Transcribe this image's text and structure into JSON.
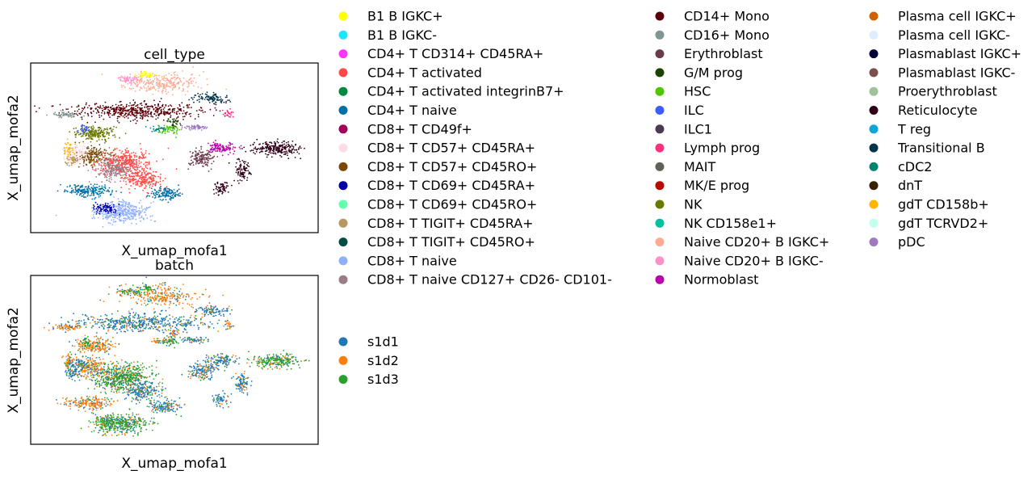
{
  "chart_data": [
    {
      "type": "scatter",
      "title": "cell_type",
      "xlabel": "X_umap_mofa1",
      "ylabel": "X_umap_mofa2",
      "legend_placement": "right",
      "grid": false,
      "legend": [
        {
          "label": "B1 B IGKC+",
          "color": "#ffff00"
        },
        {
          "label": "B1 B IGKC-",
          "color": "#1ce6ff"
        },
        {
          "label": "CD4+ T CD314+ CD45RA+",
          "color": "#ff34ff"
        },
        {
          "label": "CD4+ T activated",
          "color": "#ff4a46"
        },
        {
          "label": "CD4+ T activated integrinB7+",
          "color": "#008941"
        },
        {
          "label": "CD4+ T naive",
          "color": "#006fa6"
        },
        {
          "label": "CD8+ T CD49f+",
          "color": "#a30059"
        },
        {
          "label": "CD8+ T CD57+ CD45RA+",
          "color": "#ffdbe5"
        },
        {
          "label": "CD8+ T CD57+ CD45RO+",
          "color": "#7a4900"
        },
        {
          "label": "CD8+ T CD69+ CD45RA+",
          "color": "#0000a6"
        },
        {
          "label": "CD8+ T CD69+ CD45RO+",
          "color": "#63ffac"
        },
        {
          "label": "CD8+ T TIGIT+ CD45RA+",
          "color": "#b79762"
        },
        {
          "label": "CD8+ T TIGIT+ CD45RO+",
          "color": "#004d43"
        },
        {
          "label": "CD8+ T naive",
          "color": "#8fb0ff"
        },
        {
          "label": "CD8+ T naive CD127+ CD26- CD101-",
          "color": "#997d87"
        },
        {
          "label": "CD14+ Mono",
          "color": "#5a0007"
        },
        {
          "label": "CD16+ Mono",
          "color": "#809693"
        },
        {
          "label": "Erythroblast",
          "color": "#6a3a4c"
        },
        {
          "label": "G/M prog",
          "color": "#1b4400"
        },
        {
          "label": "HSC",
          "color": "#4fc601"
        },
        {
          "label": "ILC",
          "color": "#3b5dff"
        },
        {
          "label": "ILC1",
          "color": "#4a3b53"
        },
        {
          "label": "Lymph prog",
          "color": "#ff2f80"
        },
        {
          "label": "MAIT",
          "color": "#61615a"
        },
        {
          "label": "MK/E prog",
          "color": "#ba0900"
        },
        {
          "label": "NK",
          "color": "#6b7900"
        },
        {
          "label": "NK CD158e1+",
          "color": "#00c2a0"
        },
        {
          "label": "Naive CD20+ B IGKC+",
          "color": "#ffaa92"
        },
        {
          "label": "Naive CD20+ B IGKC-",
          "color": "#ff90c9"
        },
        {
          "label": "Normoblast",
          "color": "#b903aa"
        },
        {
          "label": "Plasma cell IGKC+",
          "color": "#d16100"
        },
        {
          "label": "Plasma cell IGKC-",
          "color": "#ddefff"
        },
        {
          "label": "Plasmablast IGKC+",
          "color": "#000035"
        },
        {
          "label": "Plasmablast IGKC-",
          "color": "#7b4f4b"
        },
        {
          "label": "Proerythroblast",
          "color": "#a1c299"
        },
        {
          "label": "Reticulocyte",
          "color": "#300018"
        },
        {
          "label": "T reg",
          "color": "#0aa6d8"
        },
        {
          "label": "Transitional B",
          "color": "#013349"
        },
        {
          "label": "cDC2",
          "color": "#00846f"
        },
        {
          "label": "dnT",
          "color": "#372101"
        },
        {
          "label": "gdT CD158b+",
          "color": "#ffb500"
        },
        {
          "label": "gdT TCRVD2+",
          "color": "#c2ffed"
        },
        {
          "label": "pDC",
          "color": "#a079bf"
        }
      ]
    },
    {
      "type": "scatter",
      "title": "batch",
      "xlabel": "X_umap_mofa1",
      "ylabel": "X_umap_mofa2",
      "legend_placement": "right",
      "grid": false,
      "legend": [
        {
          "label": "s1d1",
          "color": "#1f77b4"
        },
        {
          "label": "s1d2",
          "color": "#ff7f0e"
        },
        {
          "label": "s1d3",
          "color": "#2ca02c"
        }
      ]
    }
  ]
}
